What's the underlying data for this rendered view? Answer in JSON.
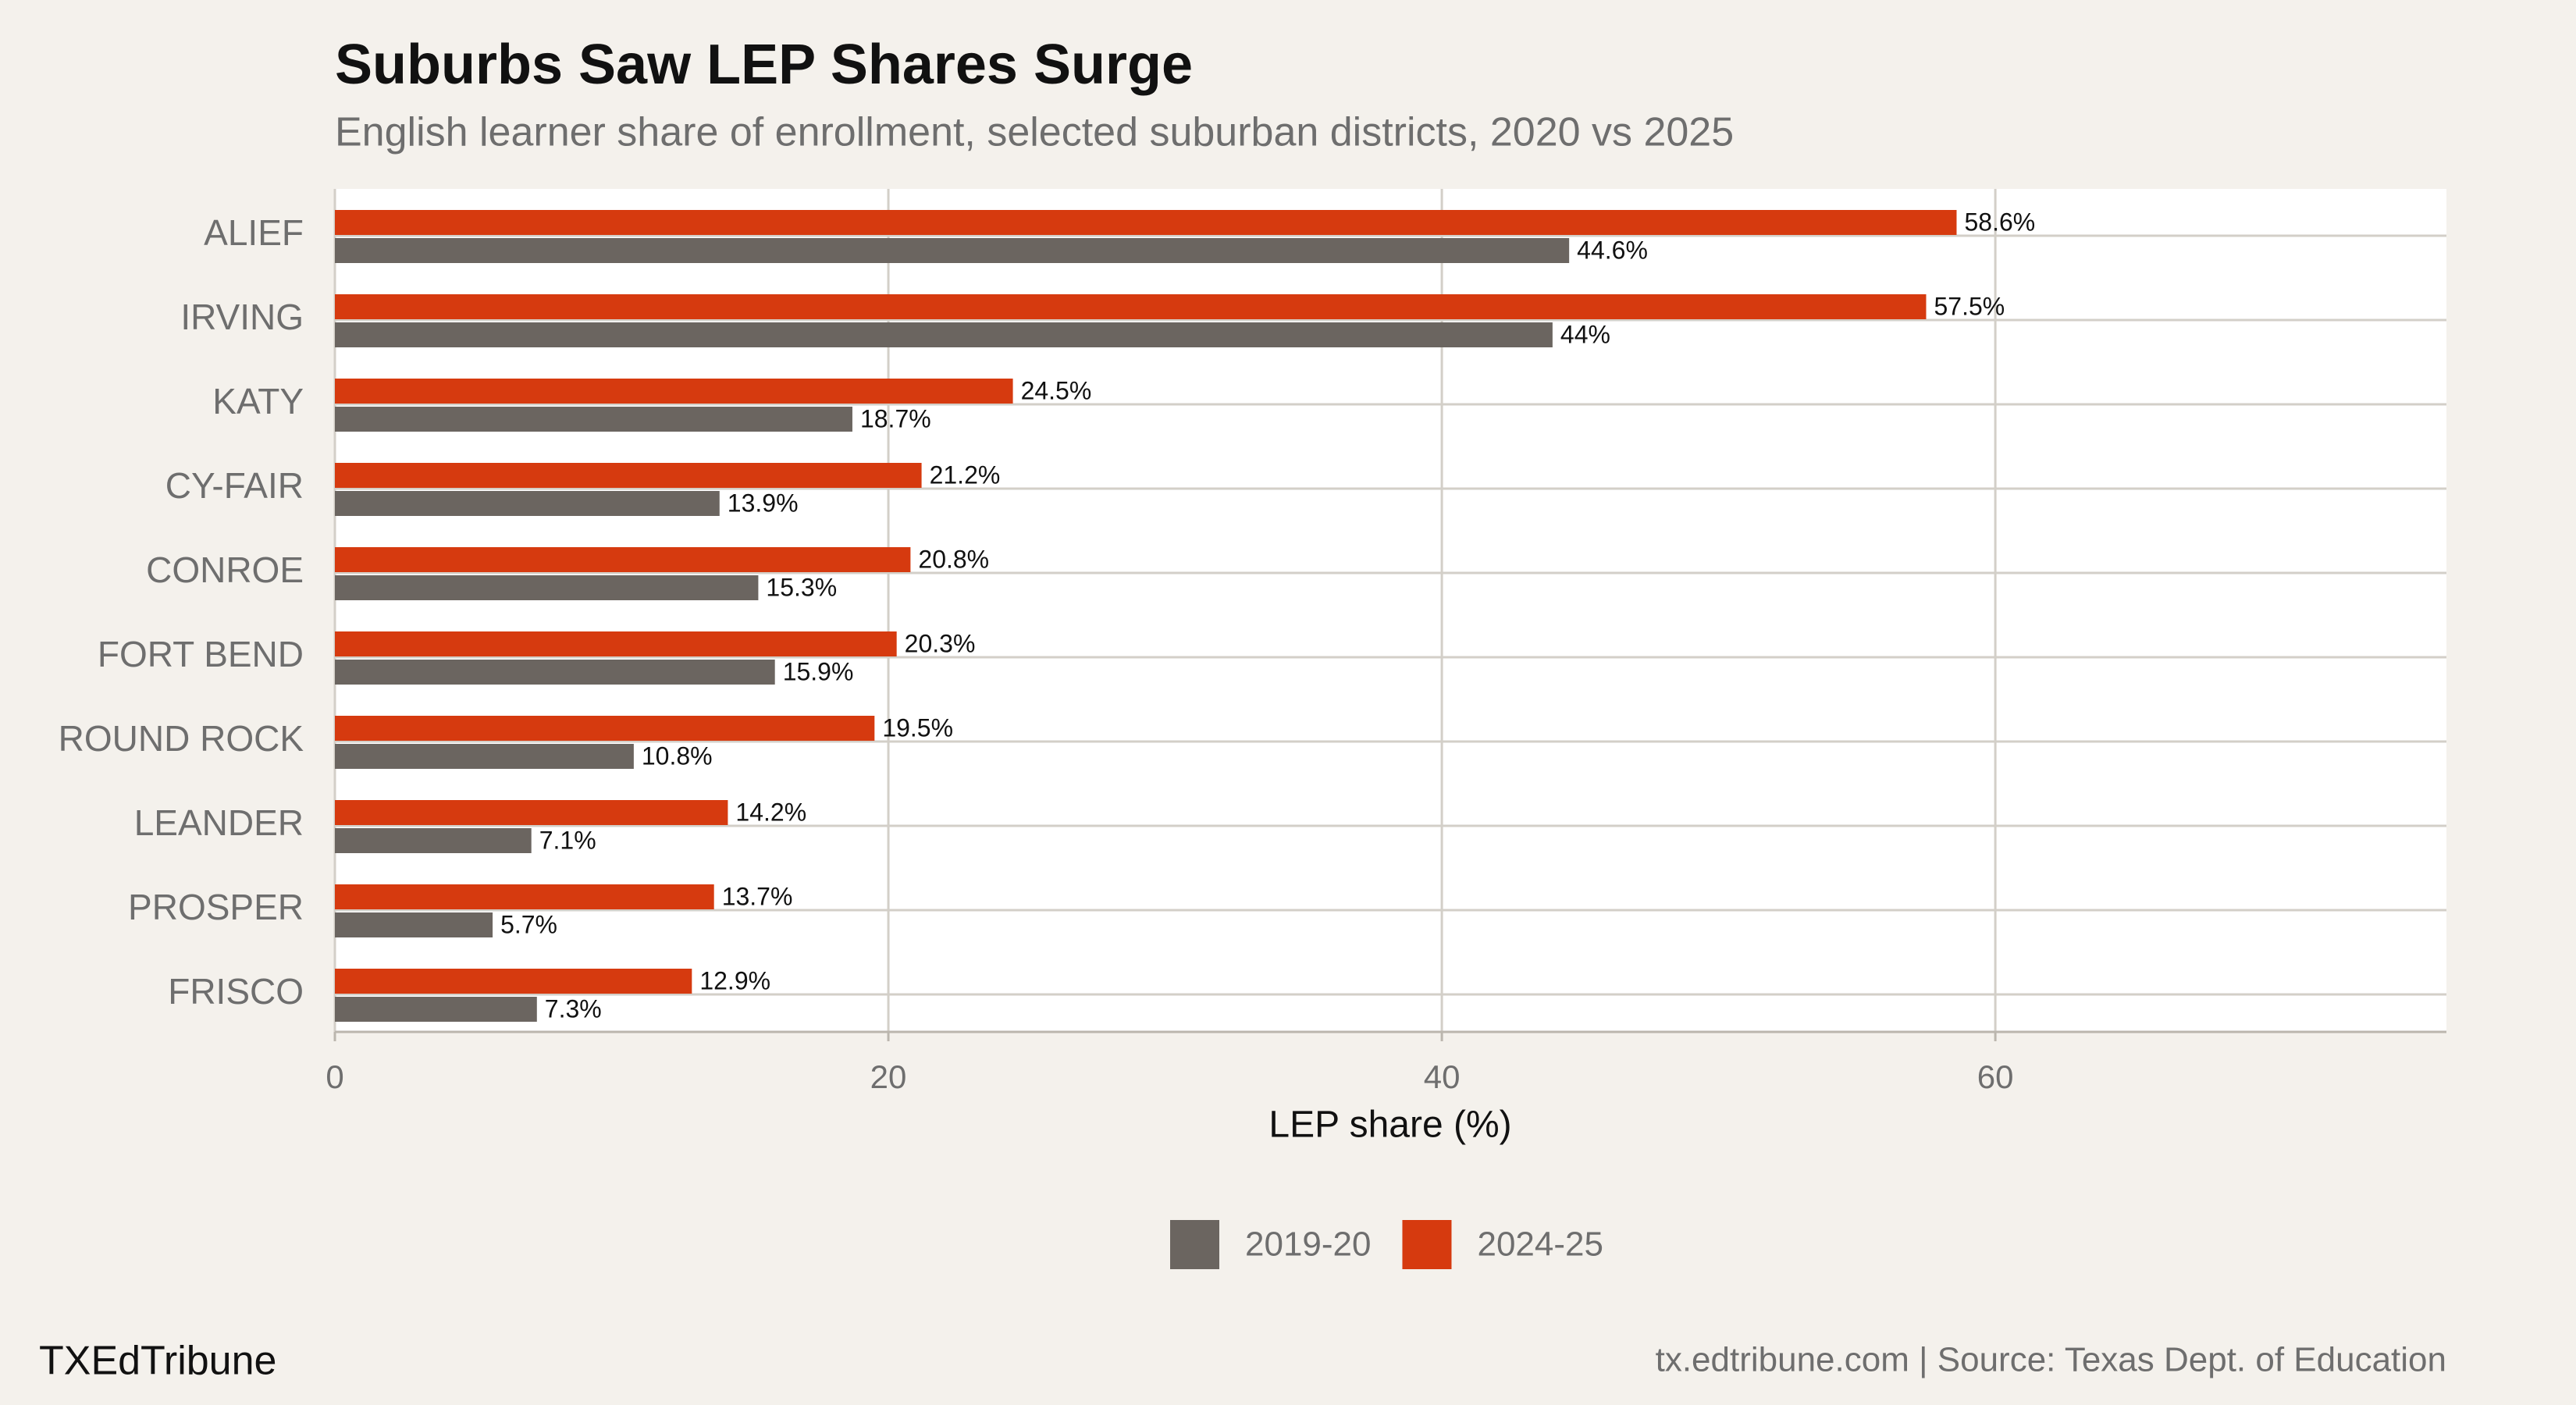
{
  "chart_data": {
    "type": "grouped-hbar",
    "title": "Suburbs Saw LEP Shares Surge",
    "subtitle": "English learner share of enrollment, selected suburban districts, 2020 vs 2025",
    "x_label": "LEP share (%)",
    "categories": [
      "ALIEF",
      "IRVING",
      "KATY",
      "CY-FAIR",
      "CONROE",
      "FORT BEND",
      "ROUND ROCK",
      "LEANDER",
      "PROSPER",
      "FRISCO"
    ],
    "series": [
      {
        "name": "2019-20",
        "color": "#6b6560",
        "values": [
          44.6,
          44,
          18.7,
          13.9,
          15.3,
          15.9,
          10.8,
          7.1,
          5.7,
          7.3
        ],
        "value_labels": [
          "44.6%",
          "44%",
          "18.7%",
          "13.9%",
          "15.3%",
          "15.9%",
          "10.8%",
          "7.1%",
          "5.7%",
          "7.3%"
        ]
      },
      {
        "name": "2024-25",
        "color": "#d63a0f",
        "values": [
          58.6,
          57.5,
          24.5,
          21.2,
          20.8,
          20.3,
          19.5,
          14.2,
          13.7,
          12.9
        ],
        "value_labels": [
          "58.6%",
          "57.5%",
          "24.5%",
          "21.2%",
          "20.8%",
          "20.3%",
          "19.5%",
          "14.2%",
          "13.7%",
          "12.9%"
        ]
      }
    ],
    "xlim": [
      0,
      76.3
    ],
    "xticks": [
      0,
      20,
      40,
      60
    ],
    "grid": true,
    "brand": "TXEdTribune",
    "caption": "tx.edtribune.com | Source: Texas Dept. of Education"
  }
}
